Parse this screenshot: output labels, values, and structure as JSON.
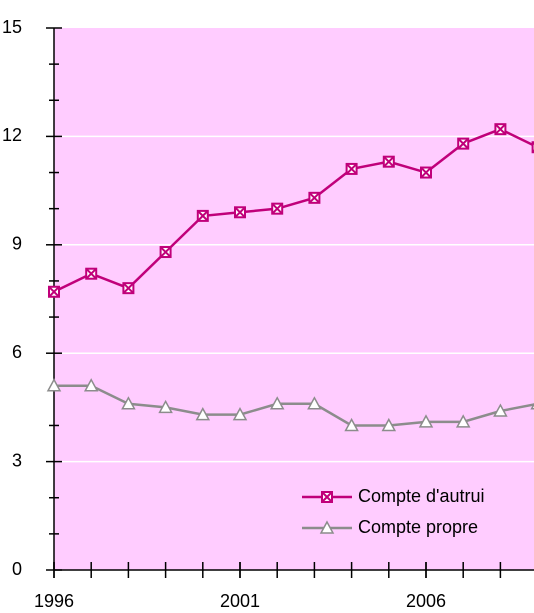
{
  "chart_data": {
    "type": "line",
    "x": [
      1996,
      1997,
      1998,
      1999,
      2000,
      2001,
      2002,
      2003,
      2004,
      2005,
      2006,
      2007,
      2008,
      2009
    ],
    "series": [
      {
        "name": "Compte d'autrui",
        "color": "#c0007a",
        "marker": "x-square",
        "values": [
          7.7,
          8.2,
          7.8,
          8.8,
          9.8,
          9.9,
          10.0,
          10.3,
          11.1,
          11.3,
          11.0,
          11.8,
          12.2,
          11.7
        ]
      },
      {
        "name": "Compte propre",
        "color": "#8c8c8c",
        "marker": "triangle",
        "values": [
          5.1,
          5.1,
          4.6,
          4.5,
          4.3,
          4.3,
          4.6,
          4.6,
          4.0,
          4.0,
          4.1,
          4.1,
          4.4,
          4.6
        ]
      }
    ],
    "xlim": [
      1996,
      2009
    ],
    "xticks": [
      1996,
      2001,
      2006
    ],
    "xminorticks": [
      1996,
      1997,
      1998,
      1999,
      2000,
      2001,
      2002,
      2003,
      2004,
      2005,
      2006,
      2007,
      2008
    ],
    "ylim": [
      0,
      15
    ],
    "yticks": [
      0,
      3,
      6,
      9,
      12,
      15
    ],
    "yminorticks": [
      1,
      2,
      4,
      5,
      7,
      8,
      10,
      11,
      13,
      14
    ],
    "grid": true,
    "legend": "lower right",
    "background": "#ffccff"
  }
}
